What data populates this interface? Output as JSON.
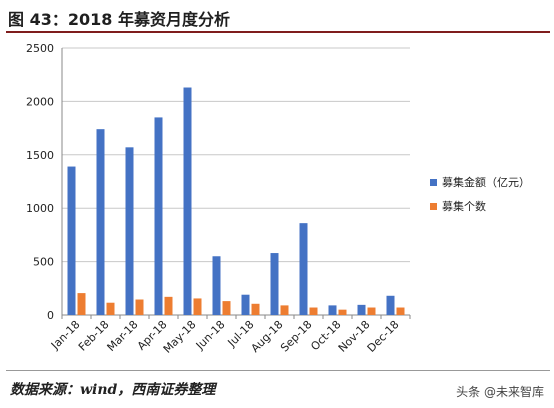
{
  "header": {
    "title": "图 43：2018 年募资月度分析"
  },
  "footer": {
    "source": "数据来源：wind，西南证券整理",
    "watermark": "头条 @未来智库"
  },
  "colors": {
    "series_amount": "#4472c4",
    "series_count": "#ed7d31",
    "grid": "#c8c8c8",
    "rule": "#7f1d1d"
  },
  "chart_data": {
    "type": "bar",
    "title": "",
    "xlabel": "",
    "ylabel": "",
    "ylim": [
      0,
      2500
    ],
    "yticks": [
      0,
      500,
      1000,
      1500,
      2000,
      2500
    ],
    "grid": true,
    "legend_position": "right",
    "categories": [
      "Jan-18",
      "Feb-18",
      "Mar-18",
      "Apr-18",
      "May-18",
      "Jun-18",
      "Jul-18",
      "Aug-18",
      "Sep-18",
      "Oct-18",
      "Nov-18",
      "Dec-18"
    ],
    "series": [
      {
        "name": "募集金额（亿元）",
        "values": [
          1390,
          1740,
          1570,
          1850,
          2130,
          550,
          190,
          580,
          860,
          90,
          95,
          180
        ]
      },
      {
        "name": "募集个数",
        "values": [
          205,
          115,
          145,
          170,
          155,
          130,
          105,
          90,
          70,
          50,
          70,
          70
        ]
      }
    ]
  }
}
